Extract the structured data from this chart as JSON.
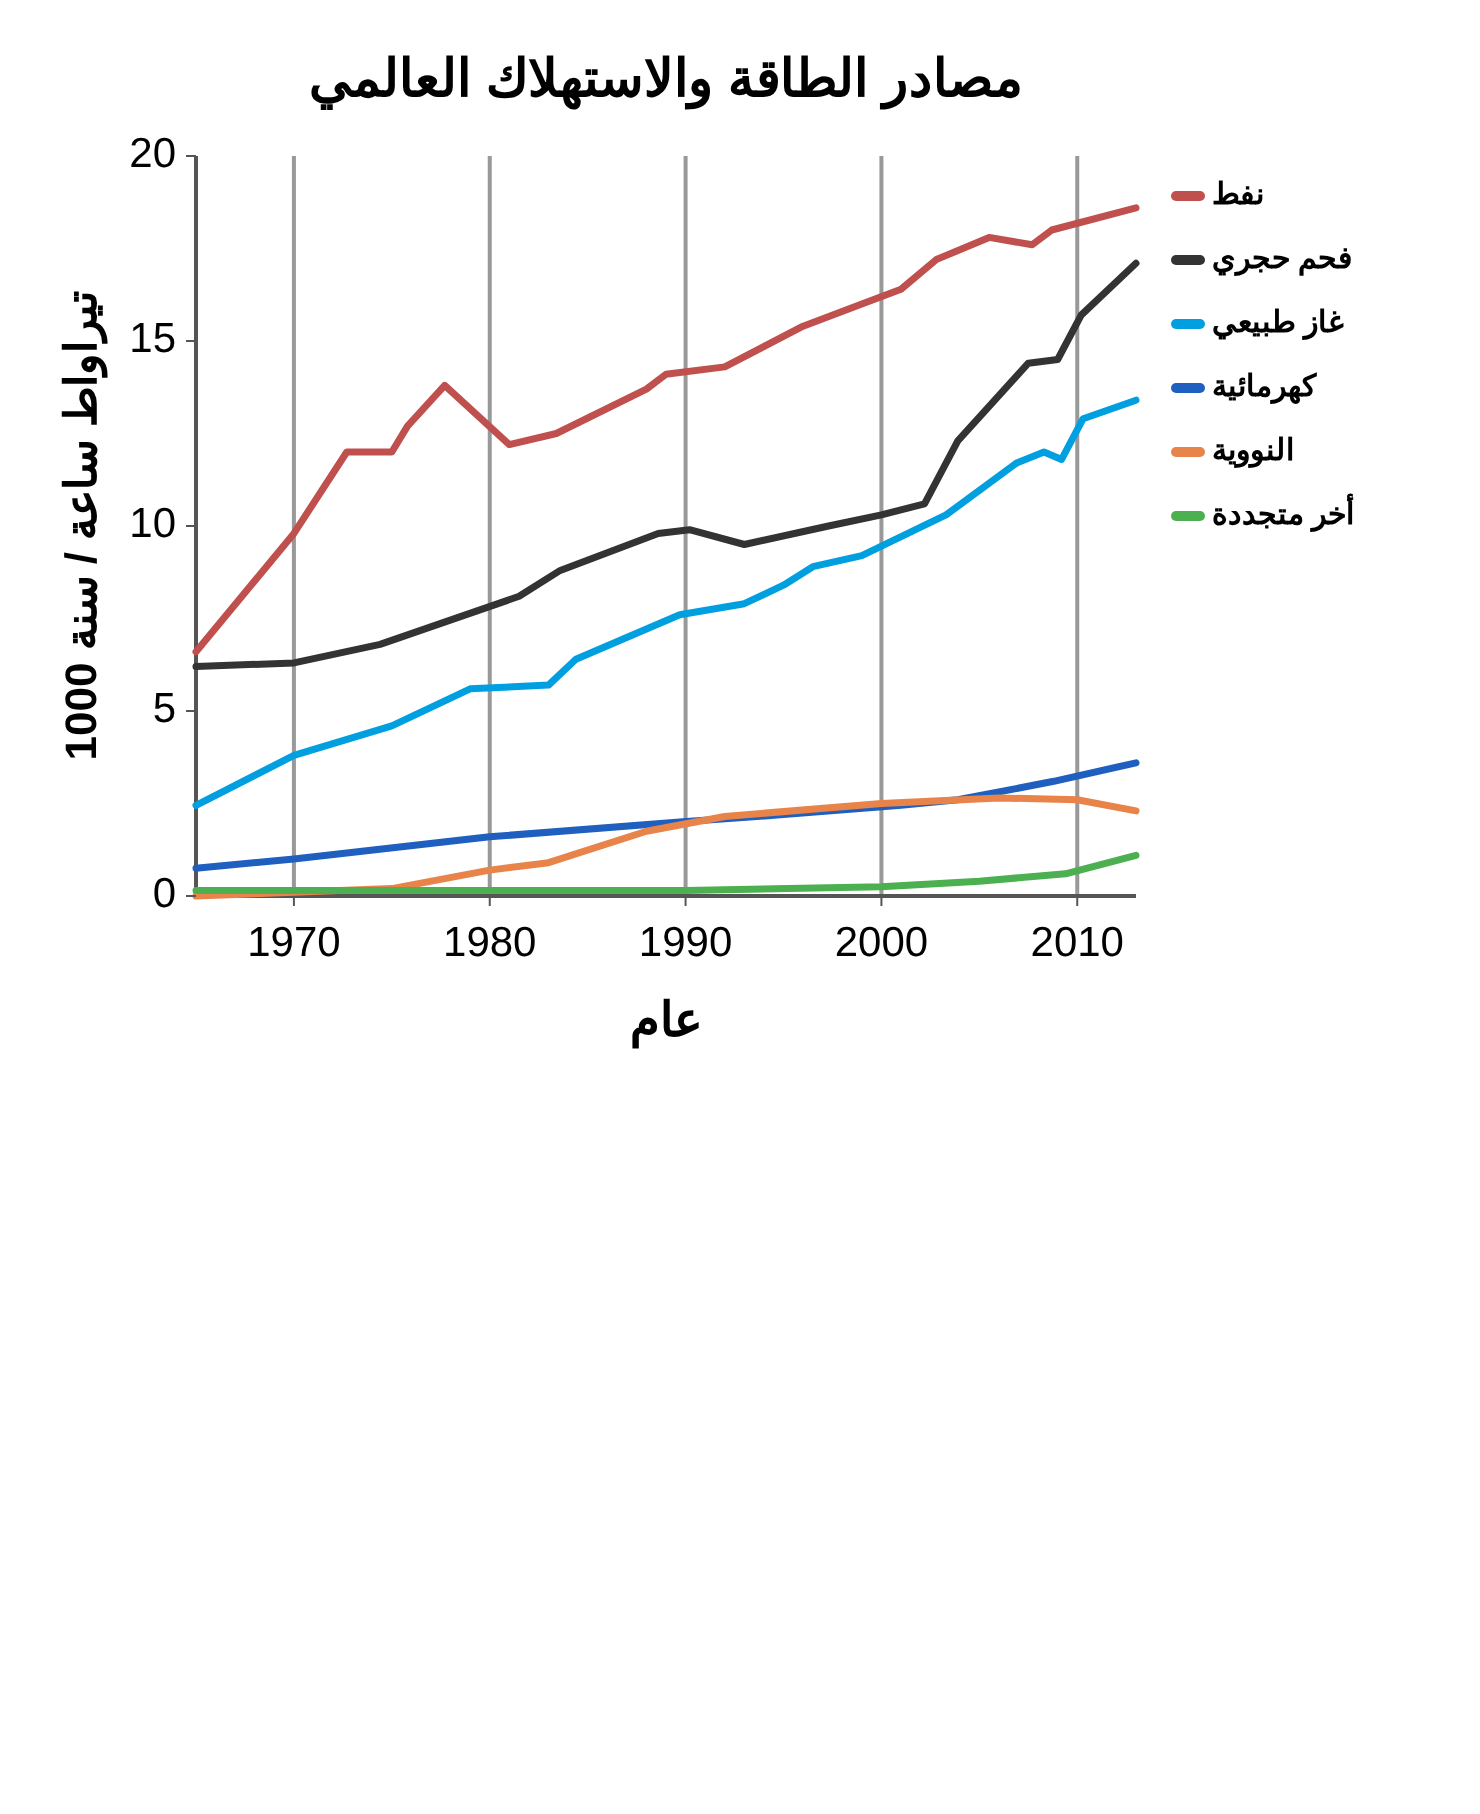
{
  "chart_data": {
    "type": "line",
    "title": "مصادر الطاقة والاستهلاك العالمي",
    "xlabel": "عام",
    "ylabel": "1000 تيراواط ساعة / سنة",
    "xlim": [
      1965,
      2013
    ],
    "xticks": [
      1970,
      1980,
      1990,
      2000,
      2010
    ],
    "ylim": [
      0,
      20
    ],
    "yticks": [
      0,
      5,
      10,
      15,
      20
    ],
    "grid": "x",
    "legend": "right",
    "line_style": "solid",
    "marker": "none",
    "series": [
      {
        "name": "نفط",
        "color": "#c0504d",
        "x": [
          1965,
          1970,
          1972.7,
          1975,
          1975.8,
          1977.7,
          1981,
          1983.4,
          1988,
          1989,
          1992,
          1996,
          1999,
          2001,
          2002.8,
          2005.5,
          2007.7,
          2008.7,
          2013
        ],
        "values": [
          6.6,
          9.8,
          12,
          12,
          12.7,
          13.8,
          12.2,
          12.5,
          13.7,
          14.1,
          14.3,
          15.4,
          16,
          16.4,
          17.2,
          17.8,
          17.6,
          18,
          18.6
        ]
      },
      {
        "name": "فحم حجري",
        "color": "#333333",
        "x": [
          1965,
          1970,
          1974.4,
          1981.5,
          1983.6,
          1988.6,
          1990.2,
          1993,
          1997.3,
          2000,
          2002.2,
          2003.9,
          2007.5,
          2009,
          2010.2,
          2013
        ],
        "values": [
          6.2,
          6.3,
          6.8,
          8.1,
          8.8,
          9.8,
          9.9,
          9.5,
          10,
          10.3,
          10.6,
          12.3,
          14.4,
          14.5,
          15.7,
          17.1
        ]
      },
      {
        "name": "غاز طبيعي",
        "color": "#00a0e0",
        "x": [
          1965,
          1970,
          1975,
          1979,
          1983,
          1984.4,
          1989.7,
          1993,
          1995,
          1996.5,
          1999,
          2003.3,
          2006.9,
          2008.3,
          2009.2,
          2010.3,
          2013
        ],
        "values": [
          2.45,
          3.8,
          4.6,
          5.6,
          5.7,
          6.4,
          7.6,
          7.9,
          8.4,
          8.9,
          9.2,
          10.3,
          11.7,
          12,
          11.8,
          12.9,
          13.4
        ]
      },
      {
        "name": "كهرمائية",
        "color": "#1f5fbf",
        "x": [
          1965,
          1970,
          1980,
          1989.7,
          1995,
          2001,
          2003.9,
          2008.8,
          2013
        ],
        "values": [
          0.75,
          1,
          1.6,
          2,
          2.2,
          2.45,
          2.6,
          3.1,
          3.6
        ]
      },
      {
        "name": "النووية",
        "color": "#e8844a",
        "x": [
          1965,
          1970,
          1975,
          1980,
          1983,
          1988,
          1992,
          2000,
          2006,
          2010,
          2013
        ],
        "values": [
          0,
          0.1,
          0.2,
          0.7,
          0.9,
          1.75,
          2.15,
          2.5,
          2.65,
          2.6,
          2.3
        ]
      },
      {
        "name": "أخر متجددة",
        "color": "#4caf50",
        "x": [
          1965,
          1990,
          2000,
          2005,
          2009.4,
          2013
        ],
        "values": [
          0.15,
          0.15,
          0.25,
          0.4,
          0.6,
          1.1
        ]
      }
    ]
  }
}
